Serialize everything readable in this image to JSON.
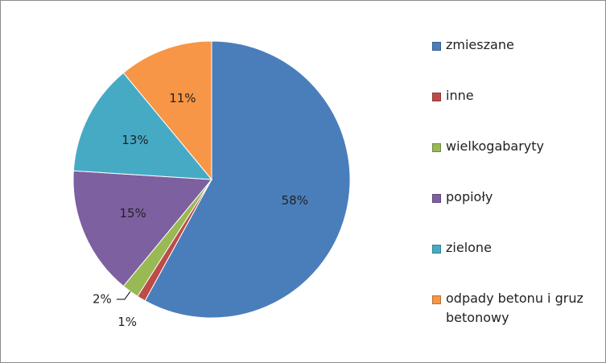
{
  "chart_data": {
    "type": "pie",
    "categories": [
      "zmieszane",
      "inne",
      "wielkogabaryty",
      "popioły",
      "zielone",
      "odpady betonu i gruz betonowy"
    ],
    "values": [
      58,
      1,
      2,
      15,
      13,
      11
    ],
    "value_labels": [
      "58%",
      "1%",
      "2%",
      "15%",
      "13%",
      "11%"
    ],
    "colors": [
      "#4a7ebb",
      "#be4b48",
      "#98b954",
      "#7d60a0",
      "#46aac5",
      "#f79646"
    ],
    "legend": "right"
  }
}
